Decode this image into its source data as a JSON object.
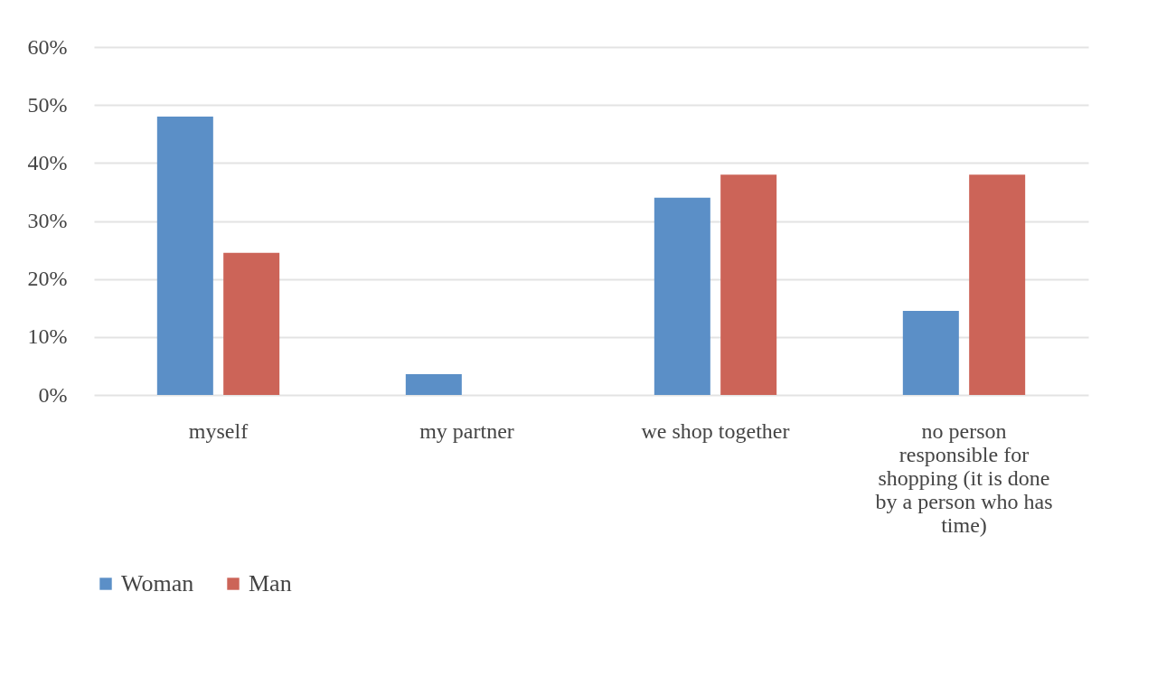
{
  "chart_data": {
    "type": "bar",
    "categories": [
      "myself",
      "my partner",
      "we shop together",
      "no person responsible for shopping (it is done by a person who has time)"
    ],
    "series": [
      {
        "name": "Woman",
        "color": "#5b8fc7",
        "values": [
          48,
          3.6,
          34,
          14.5
        ]
      },
      {
        "name": "Man",
        "color": "#cc6458",
        "values": [
          24.5,
          0,
          38,
          38
        ]
      }
    ],
    "ylim": [
      0,
      60
    ],
    "yticks": [
      {
        "value": 0,
        "label": "0%"
      },
      {
        "value": 10,
        "label": "10%"
      },
      {
        "value": 20,
        "label": "20%"
      },
      {
        "value": 30,
        "label": "30%"
      },
      {
        "value": 40,
        "label": "40%"
      },
      {
        "value": 50,
        "label": "50%"
      },
      {
        "value": 60,
        "label": "60%"
      }
    ],
    "grid": "y",
    "legend": "bottom"
  }
}
